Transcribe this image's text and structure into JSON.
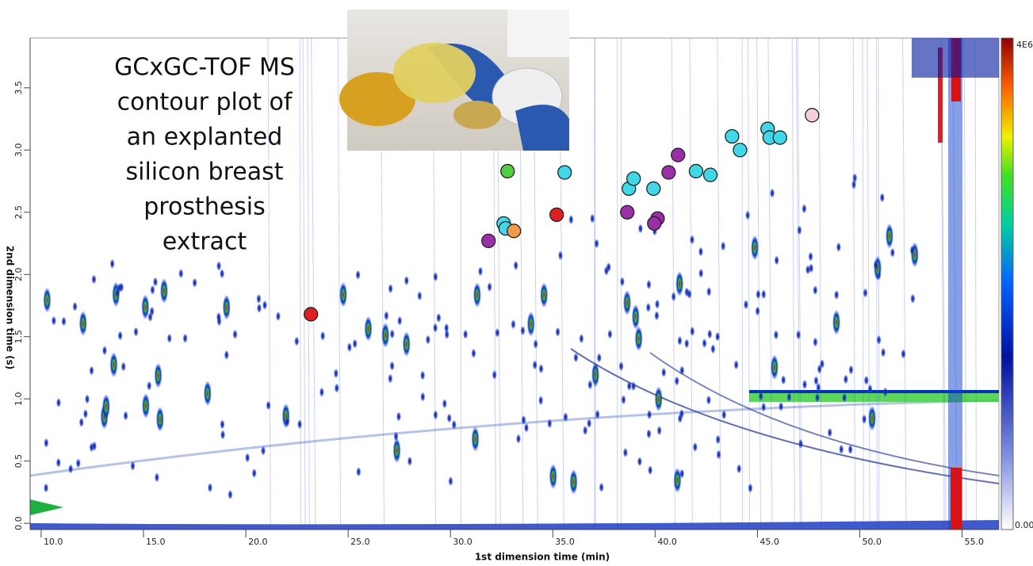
{
  "chart_data": {
    "type": "scatter",
    "annotation": [
      "GCxGC-TOF MS",
      "contour plot of",
      "an explanted",
      "silicon breast",
      "prosthesis",
      "extract"
    ],
    "x_label": "1st dimension time (min)",
    "y_label": "2nd dimension time (s)",
    "colorbar_labels": [
      "4E6",
      "0.00"
    ],
    "xlim": [
      9.46,
      56.8
    ],
    "ylim": [
      -0.05,
      3.9
    ],
    "xticks": [
      {
        "value": 10,
        "label": "10.0"
      },
      {
        "value": 15,
        "label": "15.0"
      },
      {
        "value": 20,
        "label": "20.0"
      },
      {
        "value": 25,
        "label": "25.0"
      },
      {
        "value": 30,
        "label": "30.0"
      },
      {
        "value": 35,
        "label": "35.0"
      },
      {
        "value": 40,
        "label": "40.0"
      },
      {
        "value": 45,
        "label": "45.0"
      },
      {
        "value": 50,
        "label": "50.0"
      },
      {
        "value": 55,
        "label": "55.0"
      }
    ],
    "yticks": [
      {
        "value": 0,
        "label": "0.0"
      },
      {
        "value": 0.5,
        "label": "0.5"
      },
      {
        "value": 1,
        "label": "1.0"
      },
      {
        "value": 1.5,
        "label": "1.5"
      },
      {
        "value": 2,
        "label": "2.0"
      },
      {
        "value": 2.5,
        "label": "2.5"
      },
      {
        "value": 3,
        "label": "3.0"
      },
      {
        "value": 3.5,
        "label": "3.5"
      }
    ],
    "series": [
      {
        "color": "#e02020",
        "x": [
          23.18,
          35.19
        ],
        "y": [
          1.68,
          2.48
        ]
      },
      {
        "color": "#9a2fa8",
        "x": [
          31.86,
          38.64,
          40.12,
          39.96,
          40.66,
          41.12
        ],
        "y": [
          2.27,
          2.5,
          2.45,
          2.41,
          2.82,
          2.96
        ]
      },
      {
        "color": "#40d8e8",
        "x": [
          32.6,
          32.7,
          35.58,
          38.72,
          38.95,
          39.92,
          42.0,
          42.7,
          43.76,
          44.15,
          45.5,
          45.6,
          46.1
        ],
        "y": [
          2.41,
          2.37,
          2.82,
          2.69,
          2.77,
          2.69,
          2.83,
          2.8,
          3.11,
          3.0,
          3.17,
          3.1,
          3.1
        ]
      },
      {
        "color": "#f39a4a",
        "x": [
          33.1
        ],
        "y": [
          2.35
        ]
      },
      {
        "color": "#50d040",
        "x": [
          32.79
        ],
        "y": [
          2.83
        ]
      },
      {
        "color": "#f6d0d8",
        "x": [
          47.67
        ],
        "y": [
          3.28
        ]
      }
    ]
  }
}
